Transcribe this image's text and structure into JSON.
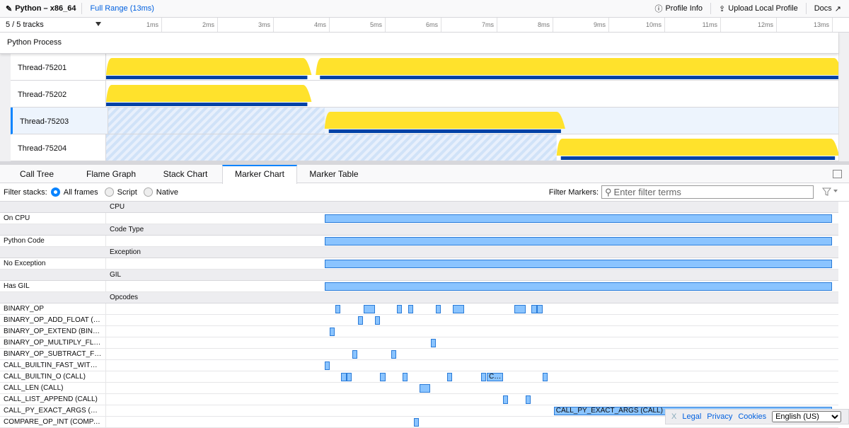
{
  "topbar": {
    "title": "Python – x86_64",
    "range": "Full Range (13ms)",
    "profile_info": "Profile Info",
    "upload": "Upload Local Profile",
    "docs": "Docs"
  },
  "timeline": {
    "tracks_count": "5 / 5 tracks",
    "ticks": [
      "1ms",
      "2ms",
      "3ms",
      "4ms",
      "5ms",
      "6ms",
      "7ms",
      "8ms",
      "9ms",
      "10ms",
      "11ms",
      "12ms",
      "13ms"
    ],
    "duration_ms": 13.1
  },
  "process": {
    "name": "Python Process"
  },
  "threads": [
    {
      "name": "Thread-75201",
      "cpu": [
        [
          0,
          3.6
        ],
        [
          3.75,
          13.1
        ]
      ],
      "selected": false
    },
    {
      "name": "Thread-75202",
      "cpu": [
        [
          0,
          3.6
        ]
      ],
      "selected": false
    },
    {
      "name": "Thread-75203",
      "cpu": [
        [
          3.87,
          8.1
        ]
      ],
      "selected": true
    },
    {
      "name": "Thread-75204",
      "cpu": [
        [
          8.06,
          13.04
        ]
      ],
      "selected": false
    }
  ],
  "tabs": [
    "Call Tree",
    "Flame Graph",
    "Stack Chart",
    "Marker Chart",
    "Marker Table"
  ],
  "selected_tab": "Marker Chart",
  "filter": {
    "label": "Filter stacks:",
    "options": [
      "All frames",
      "Script",
      "Native"
    ],
    "selected": "All frames",
    "markers_label": "Filter Markers:",
    "placeholder": "Enter filter terms"
  },
  "marker_rows": [
    {
      "header": "CPU"
    },
    {
      "label": "On CPU",
      "markers": [
        [
          3.91,
          12.99,
          ""
        ]
      ]
    },
    {
      "header": "Code Type"
    },
    {
      "label": "Python Code",
      "markers": [
        [
          3.91,
          12.99,
          ""
        ]
      ]
    },
    {
      "header": "Exception"
    },
    {
      "label": "No Exception",
      "markers": [
        [
          3.91,
          12.99,
          ""
        ]
      ]
    },
    {
      "header": "GIL"
    },
    {
      "label": "Has GIL",
      "markers": [
        [
          3.91,
          12.99,
          ""
        ]
      ]
    },
    {
      "header": "Opcodes"
    },
    {
      "label": "BINARY_OP",
      "markers": [
        [
          4.1,
          4.19,
          ""
        ],
        [
          4.61,
          4.81,
          ""
        ],
        [
          5.2,
          5.29,
          ""
        ],
        [
          5.4,
          5.49,
          ""
        ],
        [
          5.9,
          5.99,
          ""
        ],
        [
          6.2,
          6.41,
          ""
        ],
        [
          7.3,
          7.51,
          ""
        ],
        [
          7.61,
          7.71,
          ""
        ],
        [
          7.71,
          7.81,
          ""
        ]
      ]
    },
    {
      "label": "BINARY_OP_ADD_FLOAT (B…",
      "markers": [
        [
          4.51,
          4.6,
          ""
        ],
        [
          4.81,
          4.9,
          ""
        ]
      ]
    },
    {
      "label": "BINARY_OP_EXTEND (BINA…",
      "markers": [
        [
          4.0,
          4.09,
          ""
        ]
      ]
    },
    {
      "label": "BINARY_OP_MULTIPLY_FL…",
      "markers": [
        [
          5.81,
          5.9,
          ""
        ]
      ]
    },
    {
      "label": "BINARY_OP_SUBTRACT_FL…",
      "markers": [
        [
          4.41,
          4.5,
          ""
        ],
        [
          5.1,
          5.19,
          ""
        ]
      ]
    },
    {
      "label": "CALL_BUILTIN_FAST_WITH…",
      "markers": [
        [
          3.91,
          3.99,
          ""
        ]
      ]
    },
    {
      "label": "CALL_BUILTIN_O (CALL)",
      "markers": [
        [
          4.2,
          4.3,
          ""
        ],
        [
          4.3,
          4.39,
          ""
        ],
        [
          4.9,
          5.0,
          ""
        ],
        [
          5.3,
          5.39,
          ""
        ],
        [
          6.1,
          6.19,
          ""
        ],
        [
          6.71,
          6.8,
          ""
        ],
        [
          6.81,
          7.1,
          "C…"
        ],
        [
          7.81,
          7.9,
          ""
        ]
      ]
    },
    {
      "label": "CALL_LEN (CALL)",
      "markers": [
        [
          5.61,
          5.8,
          ""
        ]
      ]
    },
    {
      "label": "CALL_LIST_APPEND (CALL)",
      "markers": [
        [
          7.1,
          7.19,
          ""
        ],
        [
          7.51,
          7.6,
          ""
        ]
      ]
    },
    {
      "label": "CALL_PY_EXACT_ARGS (C…",
      "markers": [
        [
          8.01,
          12.99,
          "CALL_PY_EXACT_ARGS (CALL)"
        ]
      ]
    },
    {
      "label": "COMPARE_OP_INT (COMPA…",
      "markers": [
        [
          5.51,
          5.6,
          ""
        ]
      ]
    }
  ],
  "footer": {
    "close": "X",
    "legal": "Legal",
    "privacy": "Privacy",
    "cookies": "Cookies",
    "language": "English (US)"
  },
  "colors": {
    "accent": "#0a84ff",
    "cpu_graph": "#ffe22c",
    "category_bar": "#0042a6",
    "marker_fill": "#8ac4ff",
    "marker_border": "#2a7bd8"
  }
}
